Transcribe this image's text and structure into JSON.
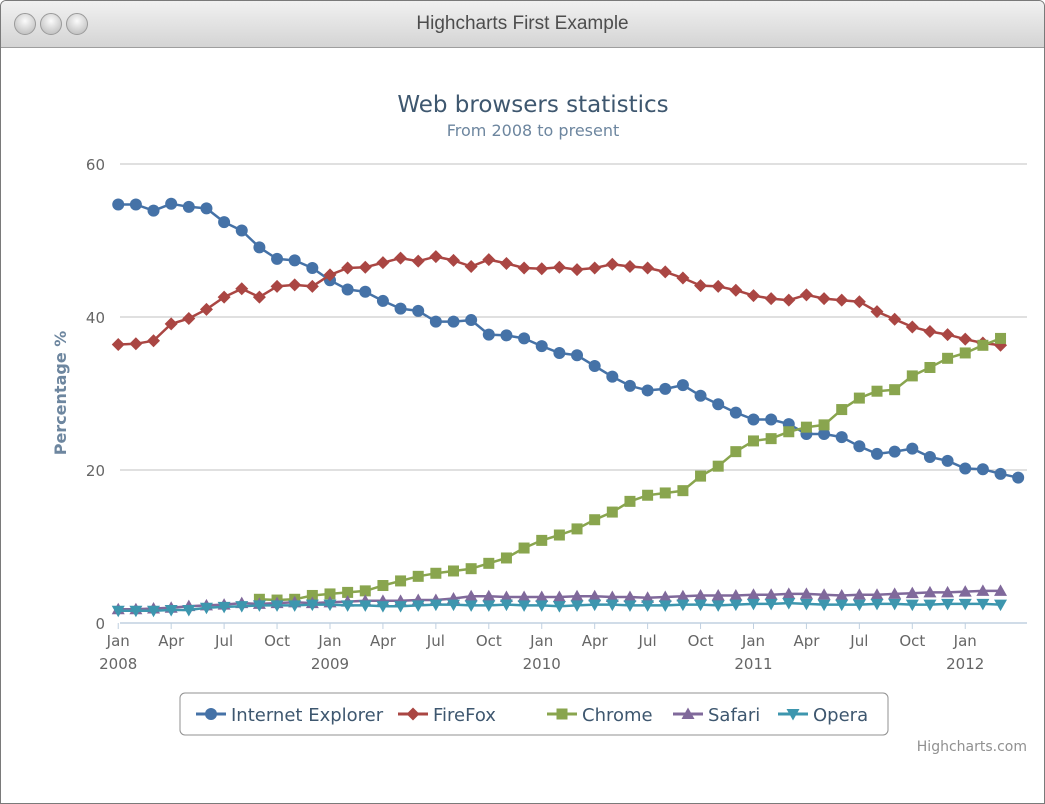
{
  "window": {
    "title": "Highcharts First Example"
  },
  "credits": "Highcharts.com",
  "colors": {
    "ie": "#4572a7",
    "firefox": "#aa4643",
    "chrome": "#89a54e",
    "safari": "#80699b",
    "opera": "#3d96ae",
    "title": "#3e576f",
    "subtitle": "#6d869f"
  },
  "chart_data": {
    "type": "line",
    "title": "Web browsers statistics",
    "subtitle": "From 2008 to present",
    "ylabel": "Percentage %",
    "xlabel": "",
    "ylim": [
      0,
      60
    ],
    "yticks": [
      0,
      20,
      40,
      60
    ],
    "xlim": [
      "2008-01",
      "2012-03"
    ],
    "grid": true,
    "legend": "bottom-center",
    "x_tick_labels": [
      {
        "month": 0,
        "label": "Jan",
        "year": "2008"
      },
      {
        "month": 3,
        "label": "Apr"
      },
      {
        "month": 6,
        "label": "Jul"
      },
      {
        "month": 9,
        "label": "Oct"
      },
      {
        "month": 12,
        "label": "Jan",
        "year": "2009"
      },
      {
        "month": 15,
        "label": "Apr"
      },
      {
        "month": 18,
        "label": "Jul"
      },
      {
        "month": 21,
        "label": "Oct"
      },
      {
        "month": 24,
        "label": "Jan",
        "year": "2010"
      },
      {
        "month": 27,
        "label": "Apr"
      },
      {
        "month": 30,
        "label": "Jul"
      },
      {
        "month": 33,
        "label": "Oct"
      },
      {
        "month": 36,
        "label": "Jan",
        "year": "2011"
      },
      {
        "month": 39,
        "label": "Apr"
      },
      {
        "month": 42,
        "label": "Jul"
      },
      {
        "month": 45,
        "label": "Oct"
      },
      {
        "month": 48,
        "label": "Jan",
        "year": "2012"
      }
    ],
    "x_start": "2008-01",
    "series": [
      {
        "name": "Internet Explorer",
        "color": "#4572a7",
        "marker": "circle",
        "start_month": 0,
        "values": [
          54.7,
          54.7,
          53.9,
          54.8,
          54.4,
          54.2,
          52.4,
          51.3,
          49.1,
          47.6,
          47.4,
          46.4,
          44.8,
          43.6,
          43.3,
          42.1,
          41.1,
          40.8,
          39.4,
          39.4,
          39.6,
          37.7,
          37.6,
          37.2,
          36.2,
          35.3,
          35.0,
          33.6,
          32.2,
          31.0,
          30.4,
          30.6,
          31.1,
          29.7,
          28.6,
          27.5,
          26.6,
          26.6,
          26.0,
          24.7,
          24.7,
          24.3,
          23.1,
          22.1,
          22.4,
          22.8,
          21.7,
          21.2,
          20.2,
          20.1,
          19.5,
          19.0
        ]
      },
      {
        "name": "FireFox",
        "color": "#aa4643",
        "marker": "diamond",
        "start_month": 0,
        "values": [
          36.4,
          36.5,
          36.9,
          39.1,
          39.8,
          41.0,
          42.6,
          43.7,
          42.6,
          44.0,
          44.2,
          44.0,
          45.5,
          46.4,
          46.5,
          47.1,
          47.7,
          47.3,
          47.9,
          47.4,
          46.6,
          47.5,
          47.0,
          46.4,
          46.3,
          46.5,
          46.2,
          46.4,
          46.9,
          46.6,
          46.4,
          45.9,
          45.1,
          44.1,
          44.0,
          43.5,
          42.8,
          42.4,
          42.2,
          42.9,
          42.4,
          42.2,
          42.0,
          40.7,
          39.7,
          38.7,
          38.1,
          37.7,
          37.1,
          36.6,
          36.3
        ]
      },
      {
        "name": "Chrome",
        "color": "#89a54e",
        "marker": "square",
        "start_month": 8,
        "values": [
          3.1,
          3.0,
          3.1,
          3.6,
          3.8,
          4.0,
          4.2,
          4.9,
          5.5,
          6.1,
          6.5,
          6.8,
          7.1,
          7.8,
          8.5,
          9.8,
          10.8,
          11.5,
          12.3,
          13.5,
          14.5,
          15.9,
          16.7,
          17.0,
          17.3,
          19.2,
          20.5,
          22.4,
          23.8,
          24.1,
          25.0,
          25.6,
          25.9,
          27.9,
          29.4,
          30.3,
          30.5,
          32.3,
          33.4,
          34.6,
          35.3,
          36.3,
          37.2
        ]
      },
      {
        "name": "Safari",
        "color": "#80699b",
        "marker": "triangle",
        "start_month": 0,
        "values": [
          1.8,
          1.8,
          1.9,
          2.0,
          2.2,
          2.3,
          2.4,
          2.6,
          2.5,
          2.6,
          2.7,
          2.6,
          2.7,
          2.8,
          2.9,
          2.9,
          2.9,
          3.0,
          3.0,
          3.2,
          3.5,
          3.5,
          3.4,
          3.4,
          3.4,
          3.4,
          3.5,
          3.5,
          3.4,
          3.4,
          3.3,
          3.4,
          3.5,
          3.6,
          3.6,
          3.6,
          3.7,
          3.7,
          3.8,
          3.8,
          3.7,
          3.6,
          3.7,
          3.7,
          3.8,
          3.9,
          4.0,
          4.0,
          4.1,
          4.2,
          4.2
        ]
      },
      {
        "name": "Opera",
        "color": "#3d96ae",
        "marker": "triangle-down",
        "start_month": 0,
        "values": [
          1.6,
          1.6,
          1.6,
          1.7,
          1.7,
          2.0,
          2.1,
          2.2,
          2.3,
          2.3,
          2.3,
          2.4,
          2.4,
          2.3,
          2.3,
          2.2,
          2.2,
          2.3,
          2.4,
          2.4,
          2.3,
          2.3,
          2.4,
          2.3,
          2.3,
          2.2,
          2.3,
          2.4,
          2.4,
          2.3,
          2.3,
          2.3,
          2.4,
          2.4,
          2.3,
          2.4,
          2.5,
          2.5,
          2.6,
          2.5,
          2.4,
          2.4,
          2.4,
          2.5,
          2.5,
          2.4,
          2.4,
          2.5,
          2.5,
          2.5,
          2.4
        ]
      }
    ]
  }
}
